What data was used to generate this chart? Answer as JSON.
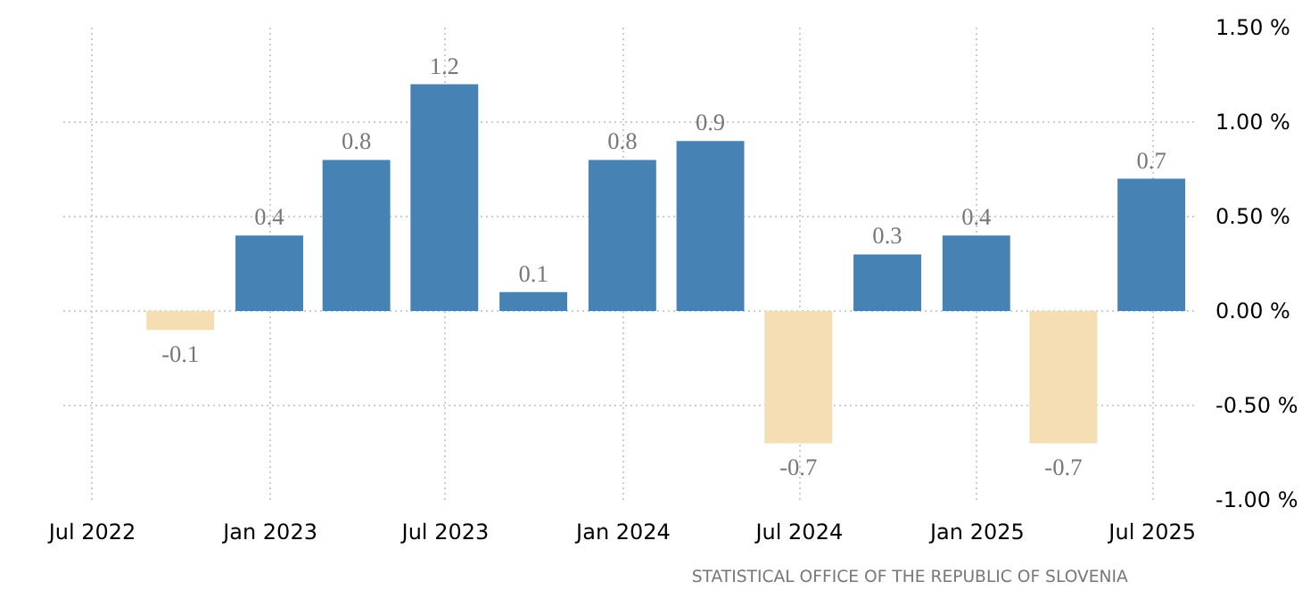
{
  "chart_data": {
    "type": "bar",
    "x": [
      "2022-09-30",
      "2022-12-31",
      "2023-03-31",
      "2023-06-30",
      "2023-09-30",
      "2023-12-31",
      "2024-03-31",
      "2024-06-30",
      "2024-09-30",
      "2024-12-31",
      "2025-03-31",
      "2025-06-30"
    ],
    "values": [
      -0.1,
      0.4,
      0.8,
      1.2,
      0.1,
      0.8,
      0.9,
      -0.7,
      0.3,
      0.4,
      -0.7,
      0.7
    ],
    "colors": [
      "#f5deb3",
      "#4682b4",
      "#4682b4",
      "#4682b4",
      "#4682b4",
      "#4682b4",
      "#4682b4",
      "#f5deb3",
      "#4682b4",
      "#4682b4",
      "#f5deb3",
      "#4682b4"
    ],
    "data_labels": true,
    "xlim": [
      "2022-06-01",
      "2025-08-15"
    ],
    "xticks": [
      {
        "value": "2022-07-01",
        "label": "Jul 2022"
      },
      {
        "value": "2023-01-01",
        "label": "Jan 2023"
      },
      {
        "value": "2023-07-01",
        "label": "Jul 2023"
      },
      {
        "value": "2024-01-01",
        "label": "Jan 2024"
      },
      {
        "value": "2024-07-01",
        "label": "Jul 2024"
      },
      {
        "value": "2025-01-01",
        "label": "Jan 2025"
      },
      {
        "value": "2025-07-01",
        "label": "Jul 2025"
      }
    ],
    "ylim": [
      -1.0,
      1.5
    ],
    "yticks": [
      {
        "value": -1.0,
        "label": "-1.00 %"
      },
      {
        "value": -0.5,
        "label": "-0.50 %"
      },
      {
        "value": 0,
        "label": "0.00 %"
      },
      {
        "value": 0.5,
        "label": "0.50 %"
      },
      {
        "value": 1.0,
        "label": "1.00 %"
      },
      {
        "value": 1.5,
        "label": "1.50 %"
      }
    ],
    "grid": true,
    "annotations": [
      "STATISTICAL OFFICE OF THE REPUBLIC OF SLOVENIA"
    ]
  }
}
